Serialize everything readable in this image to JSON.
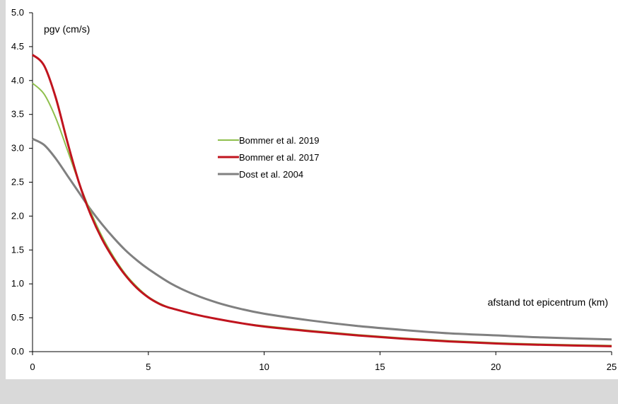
{
  "chart_data": {
    "type": "line",
    "title": "",
    "xlabel": "afstand tot epicentrum (km)",
    "ylabel": "pgv (cm/s)",
    "xlim": [
      0,
      25
    ],
    "ylim": [
      0,
      5
    ],
    "x_ticks": [
      "0",
      "5",
      "10",
      "15",
      "20",
      "25"
    ],
    "y_ticks": [
      "0.0",
      "0.5",
      "1.0",
      "1.5",
      "2.0",
      "2.5",
      "3.0",
      "3.5",
      "4.0",
      "4.5",
      "5.0"
    ],
    "grid": false,
    "legend_position": "center",
    "series": [
      {
        "name": "Bommer et al. 2019",
        "color": "#8fbf4d",
        "x": [
          0,
          0.5,
          1,
          1.5,
          2,
          2.5,
          3,
          3.5,
          4,
          4.5,
          5,
          5.5,
          6,
          7,
          8,
          9,
          10,
          12,
          14,
          16,
          18,
          20,
          22,
          25
        ],
        "y": [
          3.96,
          3.8,
          3.45,
          2.98,
          2.5,
          2.07,
          1.7,
          1.4,
          1.15,
          0.96,
          0.81,
          0.71,
          0.64,
          0.55,
          0.48,
          0.42,
          0.38,
          0.31,
          0.25,
          0.2,
          0.16,
          0.13,
          0.11,
          0.09
        ]
      },
      {
        "name": "Bommer et al. 2017",
        "color": "#c0141e",
        "x": [
          0,
          0.5,
          1,
          1.5,
          2,
          2.5,
          3,
          3.5,
          4,
          4.5,
          5,
          5.5,
          5.8,
          6,
          7,
          8,
          9,
          10,
          12,
          14,
          16,
          18,
          20,
          22,
          25
        ],
        "y": [
          4.38,
          4.22,
          3.75,
          3.1,
          2.5,
          2.03,
          1.66,
          1.37,
          1.13,
          0.94,
          0.8,
          0.7,
          0.66,
          0.64,
          0.55,
          0.48,
          0.42,
          0.37,
          0.3,
          0.24,
          0.19,
          0.15,
          0.12,
          0.1,
          0.08
        ]
      },
      {
        "name": "Dost et al. 2004",
        "color": "#808080",
        "x": [
          0,
          0.5,
          1,
          1.5,
          2,
          2.5,
          3,
          3.5,
          4,
          4.5,
          5,
          6,
          7,
          8,
          9,
          10,
          12,
          14,
          16,
          18,
          20,
          22,
          25
        ],
        "y": [
          3.14,
          3.05,
          2.85,
          2.6,
          2.35,
          2.1,
          1.88,
          1.68,
          1.5,
          1.35,
          1.22,
          1.0,
          0.84,
          0.72,
          0.63,
          0.56,
          0.46,
          0.38,
          0.32,
          0.27,
          0.24,
          0.21,
          0.18
        ]
      }
    ]
  }
}
